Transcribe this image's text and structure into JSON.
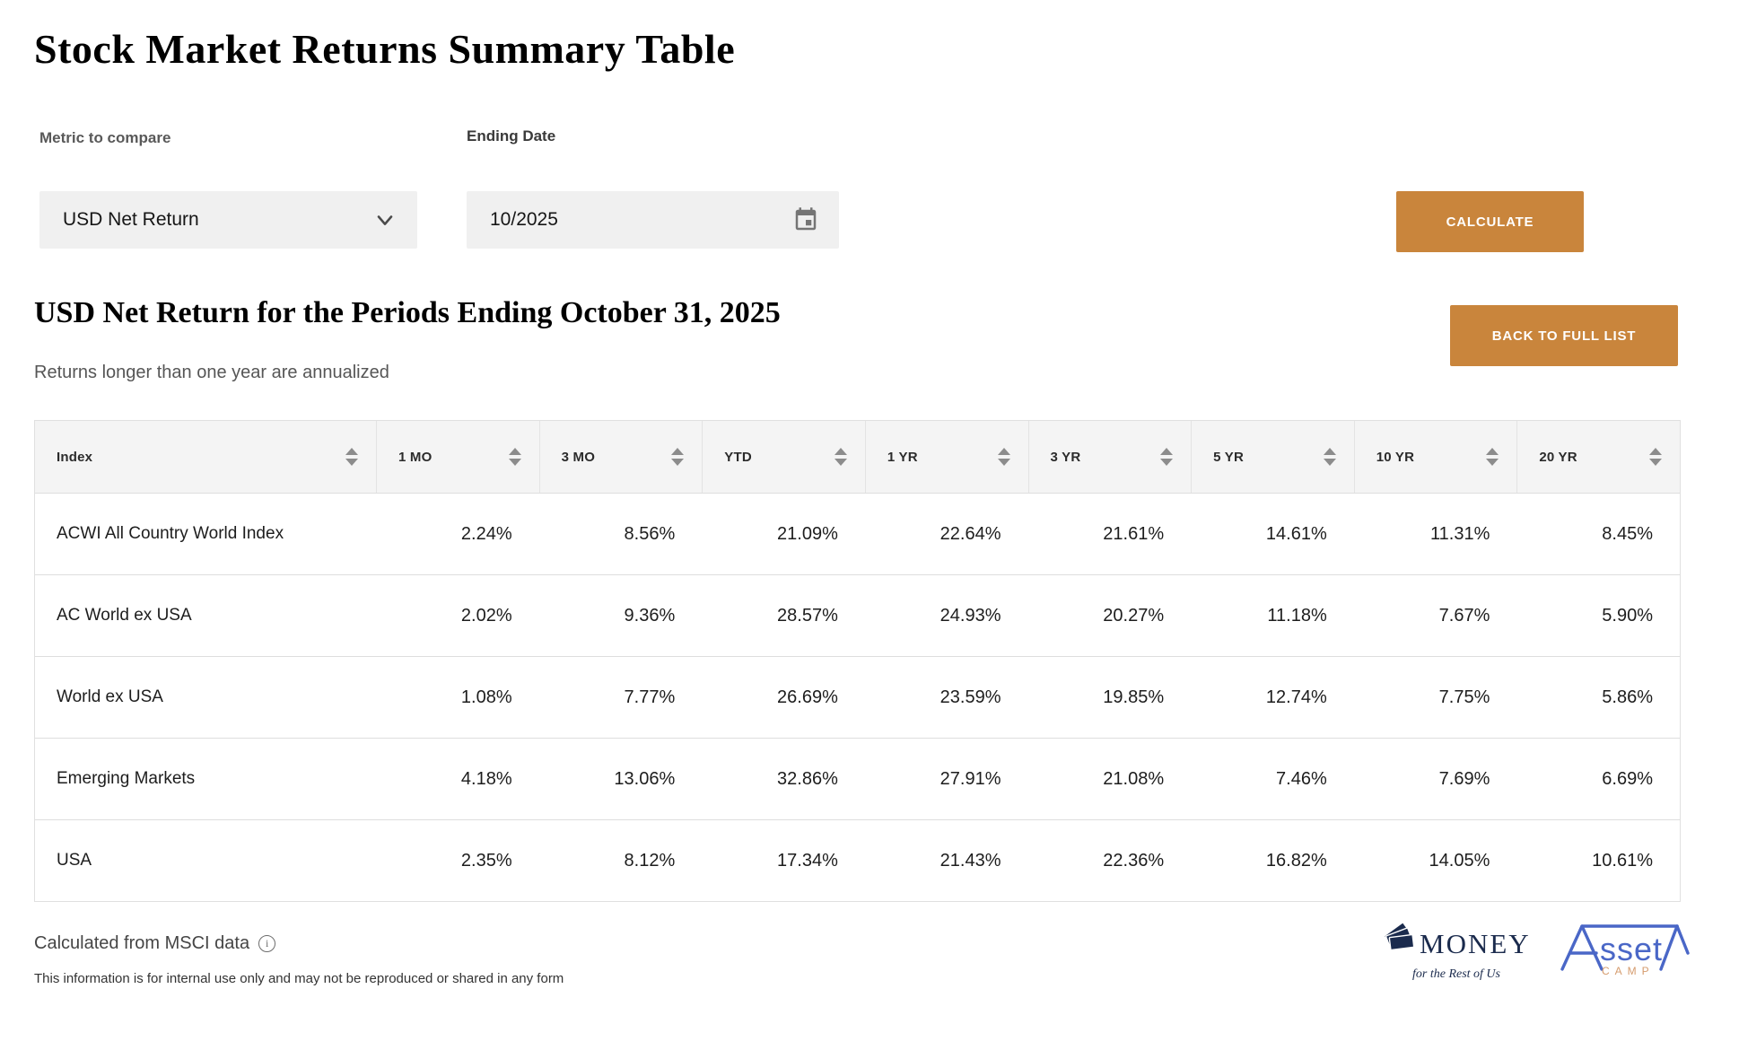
{
  "page": {
    "title": "Stock Market Returns Summary Table"
  },
  "controls": {
    "metric_label": "Metric to compare",
    "metric_value": "USD Net Return",
    "date_label": "Ending Date",
    "date_value": "10/2025",
    "calculate_label": "CALCULATE",
    "back_label": "BACK TO FULL LIST"
  },
  "section": {
    "title": "USD Net Return for the Periods Ending October 31, 2025",
    "subtitle": "Returns longer than one year are annualized"
  },
  "table": {
    "columns": [
      "Index",
      "1 MO",
      "3 MO",
      "YTD",
      "1 YR",
      "3 YR",
      "5 YR",
      "10 YR",
      "20 YR"
    ],
    "rows": [
      {
        "index": "ACWI All Country World Index",
        "values": [
          "2.24%",
          "8.56%",
          "21.09%",
          "22.64%",
          "21.61%",
          "14.61%",
          "11.31%",
          "8.45%"
        ]
      },
      {
        "index": "AC World ex USA",
        "values": [
          "2.02%",
          "9.36%",
          "28.57%",
          "24.93%",
          "20.27%",
          "11.18%",
          "7.67%",
          "5.90%"
        ]
      },
      {
        "index": "World ex USA",
        "values": [
          "1.08%",
          "7.77%",
          "26.69%",
          "23.59%",
          "19.85%",
          "12.74%",
          "7.75%",
          "5.86%"
        ]
      },
      {
        "index": "Emerging Markets",
        "values": [
          "4.18%",
          "13.06%",
          "32.86%",
          "27.91%",
          "21.08%",
          "7.46%",
          "7.69%",
          "6.69%"
        ]
      },
      {
        "index": "USA",
        "values": [
          "2.35%",
          "8.12%",
          "17.34%",
          "21.43%",
          "22.36%",
          "16.82%",
          "14.05%",
          "10.61%"
        ]
      }
    ]
  },
  "footer": {
    "source": "Calculated from MSCI data",
    "info_icon_glyph": "i",
    "disclaimer": "This information is for internal use only and may not be reproduced or shared in any form"
  },
  "logos": {
    "money": {
      "word": "MONEY",
      "tagline": "for the Rest of Us"
    },
    "assetcamp": {
      "asset_text": "sset",
      "camp_text": "C A M P"
    }
  },
  "colors": {
    "accent_orange": "#c9853c",
    "header_bg": "#f4f4f4",
    "field_bg": "#f0f0f0",
    "money_navy": "#1b2b4d",
    "assetcamp_blue": "#4a67c7",
    "assetcamp_orange": "#d59b6d"
  }
}
